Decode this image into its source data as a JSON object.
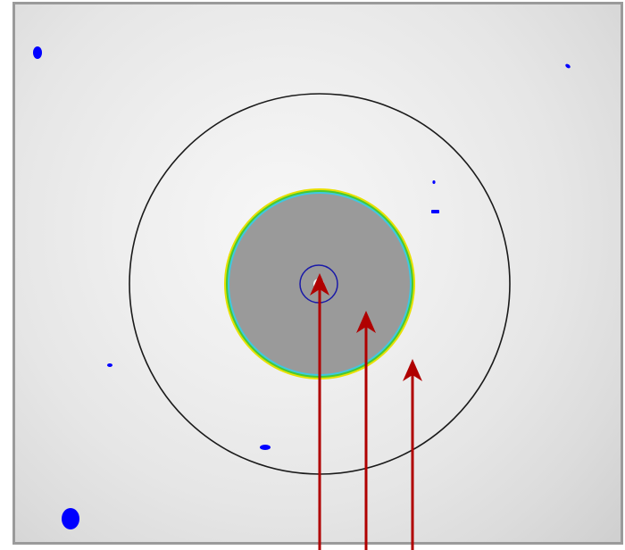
{
  "image": {
    "description_free": true,
    "colors": {
      "background": "#e8e8e8",
      "frame_border": "#9a9a9a",
      "outer_ring": "#1a1a1a",
      "core_fill": "#9a9a9a",
      "core_edge_outer": "#e8e000",
      "core_edge_mid": "#49c832",
      "core_edge_inner": "#3fc8e0",
      "center_ring": "#1a1aa8",
      "center_spot": "#f4f4f4",
      "blob": "#0000ff",
      "arrow": "#b00000"
    },
    "icons": {
      "arrows": [
        "up-arrow-icon",
        "up-arrow-icon",
        "up-arrow-icon"
      ]
    }
  }
}
